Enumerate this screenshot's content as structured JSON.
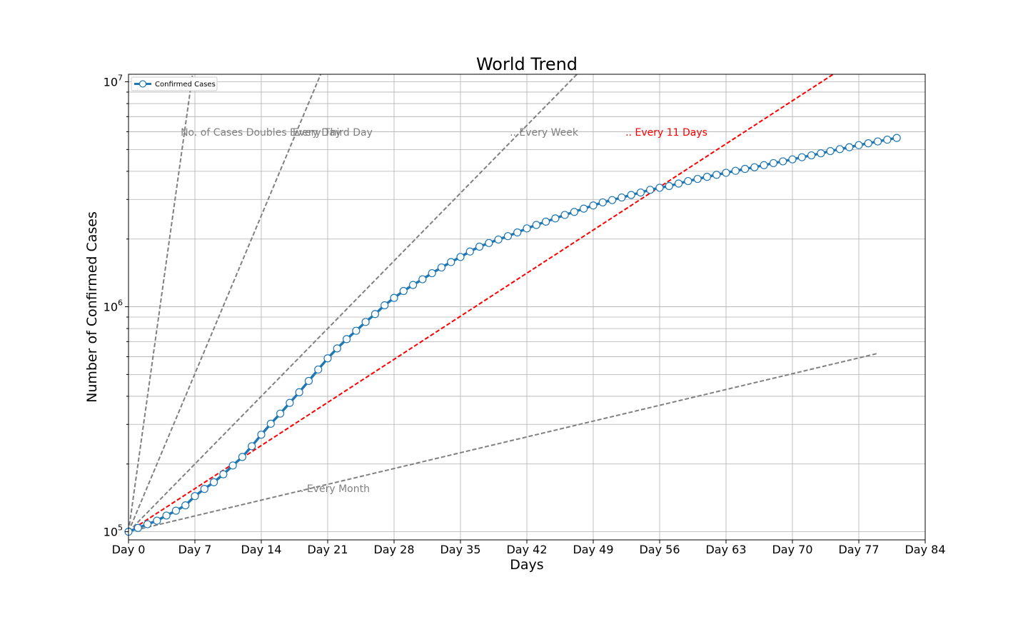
{
  "chart_data": {
    "type": "line",
    "title": "World Trend",
    "xlabel": "Days",
    "ylabel": "Number of Confirmed Cases",
    "yscale": "log",
    "xlim": [
      0,
      84
    ],
    "ylim": [
      92000,
      10800000
    ],
    "grid": true,
    "legend_position": "top-left",
    "x_ticks": [
      0,
      7,
      14,
      21,
      28,
      35,
      42,
      49,
      56,
      63,
      70,
      77,
      84
    ],
    "x_tick_labels": [
      "Day 0",
      "Day 7",
      "Day 14",
      "Day 21",
      "Day 28",
      "Day 35",
      "Day 42",
      "Day 49",
      "Day 56",
      "Day 63",
      "Day 70",
      "Day 77",
      "Day 84"
    ],
    "y_major_ticks": [
      {
        "value": 100000,
        "base": "10",
        "exp": "5"
      },
      {
        "value": 1000000,
        "base": "10",
        "exp": "6"
      },
      {
        "value": 10000000,
        "base": "10",
        "exp": "7"
      }
    ],
    "series": [
      {
        "name": "Confirmed Cases",
        "color": "#1f77b4",
        "marker": "open-circle",
        "x": [
          0,
          1,
          2,
          3,
          4,
          5,
          6,
          7,
          8,
          9,
          10,
          11,
          12,
          13,
          14,
          15,
          16,
          17,
          18,
          19,
          20,
          21,
          22,
          23,
          24,
          25,
          26,
          27,
          28,
          29,
          30,
          31,
          32,
          33,
          34,
          35,
          36,
          37,
          38,
          39,
          40,
          41,
          42,
          43,
          44,
          45,
          46,
          47,
          48,
          49,
          50,
          51,
          52,
          53,
          54,
          55,
          56,
          57,
          58,
          59,
          60,
          61,
          62,
          63,
          64,
          65,
          66,
          67,
          68,
          69,
          70,
          71,
          72,
          73,
          74,
          75,
          76,
          77,
          78,
          79,
          80,
          81
        ],
        "values": [
          100000,
          104000,
          108000,
          112000,
          118000,
          124000,
          131000,
          144000,
          155000,
          166000,
          180000,
          197000,
          215000,
          240000,
          270000,
          302000,
          335000,
          374000,
          417000,
          468000,
          526000,
          590000,
          653000,
          718000,
          782000,
          856000,
          928000,
          1015000,
          1095000,
          1175000,
          1250000,
          1325000,
          1410000,
          1495000,
          1580000,
          1665000,
          1760000,
          1850000,
          1920000,
          1990000,
          2060000,
          2140000,
          2230000,
          2310000,
          2390000,
          2470000,
          2560000,
          2640000,
          2730000,
          2820000,
          2910000,
          2980000,
          3060000,
          3140000,
          3220000,
          3310000,
          3380000,
          3440000,
          3530000,
          3620000,
          3700000,
          3780000,
          3860000,
          3940000,
          4020000,
          4100000,
          4170000,
          4260000,
          4350000,
          4430000,
          4520000,
          4620000,
          4710000,
          4810000,
          4920000,
          5020000,
          5120000,
          5230000,
          5330000,
          5430000,
          5530000,
          5630000
        ]
      }
    ],
    "reference_lines": [
      {
        "label": "No. of Cases Doubles Every Day",
        "doubling_days": 1,
        "color": "#808080",
        "x_end": 84
      },
      {
        "label": "Every Third Day",
        "doubling_days": 3,
        "color": "#808080",
        "x_end": 84
      },
      {
        "label": ".. Every Week",
        "doubling_days": 7,
        "color": "#808080",
        "x_end": 84
      },
      {
        "label": ".. Every 11 Days",
        "doubling_days": 11,
        "color": "#ff0000",
        "x_end": 84
      },
      {
        "label": ".. Every Month",
        "doubling_days": 30,
        "color": "#808080",
        "x_end": 79
      }
    ]
  }
}
